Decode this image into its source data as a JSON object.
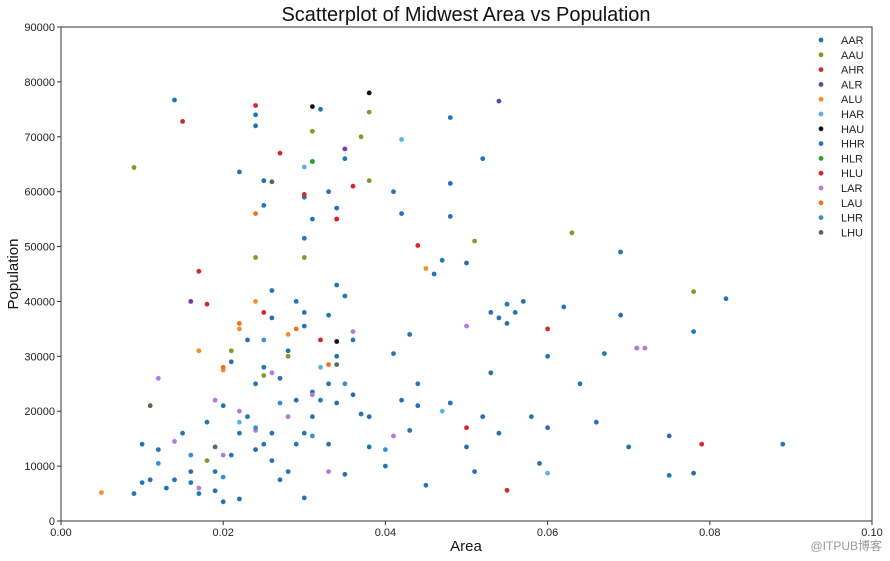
{
  "chart_data": {
    "type": "scatter",
    "title": "Scatterplot of Midwest Area vs Population",
    "xlabel": "Area",
    "ylabel": "Population",
    "xlim": [
      0.0,
      0.1
    ],
    "ylim": [
      0,
      90000
    ],
    "xticks": [
      "0.00",
      "0.02",
      "0.04",
      "0.06",
      "0.08",
      "0.10"
    ],
    "yticks": [
      "0",
      "10000",
      "20000",
      "30000",
      "40000",
      "50000",
      "60000",
      "70000",
      "80000",
      "90000"
    ],
    "grid": false,
    "legend_position": "top-right",
    "series": [
      {
        "name": "AAR",
        "color": "#1f77b4",
        "points": [
          [
            0.014,
            76700
          ],
          [
            0.024,
            74000
          ],
          [
            0.03,
            59000
          ],
          [
            0.032,
            75000
          ],
          [
            0.035,
            66000
          ],
          [
            0.031,
            55000
          ],
          [
            0.03,
            51500
          ],
          [
            0.025,
            57500
          ],
          [
            0.026,
            42000
          ],
          [
            0.029,
            40000
          ],
          [
            0.033,
            37500
          ],
          [
            0.034,
            43000
          ],
          [
            0.035,
            41000
          ],
          [
            0.03,
            35500
          ],
          [
            0.028,
            31000
          ],
          [
            0.025,
            28000
          ],
          [
            0.024,
            25000
          ],
          [
            0.02,
            21000
          ],
          [
            0.018,
            18000
          ],
          [
            0.015,
            16000
          ],
          [
            0.012,
            13000
          ],
          [
            0.01,
            14000
          ],
          [
            0.01,
            7000
          ],
          [
            0.013,
            6000
          ],
          [
            0.016,
            7000
          ],
          [
            0.017,
            5000
          ],
          [
            0.019,
            9000
          ],
          [
            0.021,
            12000
          ],
          [
            0.022,
            16000
          ],
          [
            0.023,
            19000
          ],
          [
            0.025,
            14000
          ],
          [
            0.026,
            11000
          ],
          [
            0.027,
            7500
          ],
          [
            0.028,
            9000
          ],
          [
            0.029,
            14000
          ],
          [
            0.03,
            16000
          ],
          [
            0.031,
            19000
          ],
          [
            0.032,
            22000
          ],
          [
            0.033,
            25000
          ],
          [
            0.034,
            30000
          ],
          [
            0.036,
            33000
          ],
          [
            0.037,
            19500
          ],
          [
            0.038,
            13500
          ],
          [
            0.04,
            10000
          ],
          [
            0.041,
            30500
          ],
          [
            0.043,
            34000
          ],
          [
            0.044,
            25000
          ],
          [
            0.046,
            45000
          ],
          [
            0.047,
            47500
          ],
          [
            0.048,
            73500
          ],
          [
            0.052,
            66000
          ],
          [
            0.055,
            39500
          ],
          [
            0.056,
            38000
          ],
          [
            0.058,
            19000
          ],
          [
            0.06,
            30000
          ],
          [
            0.062,
            39000
          ],
          [
            0.064,
            25000
          ],
          [
            0.067,
            30500
          ],
          [
            0.069,
            49000
          ],
          [
            0.071,
            31500
          ],
          [
            0.075,
            8300
          ],
          [
            0.078,
            34500
          ],
          [
            0.082,
            40500
          ],
          [
            0.089,
            14000
          ]
        ]
      },
      {
        "name": "AAU",
        "color": "#7f9b28",
        "points": [
          [
            0.009,
            64400
          ],
          [
            0.031,
            71000
          ],
          [
            0.037,
            70000
          ],
          [
            0.038,
            74500
          ],
          [
            0.038,
            62000
          ],
          [
            0.051,
            51000
          ],
          [
            0.063,
            52500
          ],
          [
            0.078,
            41800
          ],
          [
            0.03,
            48000
          ],
          [
            0.024,
            48000
          ],
          [
            0.021,
            31000
          ],
          [
            0.018,
            11000
          ],
          [
            0.025,
            26500
          ],
          [
            0.028,
            30000
          ]
        ]
      },
      {
        "name": "AHR",
        "color": "#d62728",
        "points": [
          [
            0.015,
            72800
          ],
          [
            0.024,
            75700
          ],
          [
            0.027,
            67000
          ],
          [
            0.03,
            59500
          ],
          [
            0.034,
            55000
          ],
          [
            0.036,
            61000
          ],
          [
            0.044,
            50200
          ],
          [
            0.017,
            45500
          ],
          [
            0.018,
            39500
          ],
          [
            0.025,
            38000
          ],
          [
            0.032,
            33000
          ],
          [
            0.05,
            17000
          ],
          [
            0.06,
            35000
          ],
          [
            0.079,
            14000
          ],
          [
            0.055,
            5600
          ]
        ]
      },
      {
        "name": "ALR",
        "color": "#6b3fa0",
        "points": [
          [
            0.054,
            76500
          ],
          [
            0.035,
            67800
          ],
          [
            0.016,
            40000
          ]
        ]
      },
      {
        "name": "ALU",
        "color": "#f28e2b",
        "points": [
          [
            0.005,
            5200
          ],
          [
            0.017,
            31000
          ],
          [
            0.022,
            35000
          ],
          [
            0.024,
            40000
          ],
          [
            0.028,
            34000
          ],
          [
            0.045,
            46000
          ],
          [
            0.02,
            27500
          ]
        ]
      },
      {
        "name": "HAR",
        "color": "#56b4e9",
        "points": [
          [
            0.03,
            64500
          ],
          [
            0.042,
            69500
          ],
          [
            0.022,
            18000
          ],
          [
            0.047,
            20000
          ],
          [
            0.06,
            8700
          ],
          [
            0.032,
            28000
          ]
        ]
      },
      {
        "name": "HAU",
        "color": "#111111",
        "points": [
          [
            0.038,
            78000
          ],
          [
            0.031,
            75500
          ],
          [
            0.034,
            32700
          ]
        ]
      },
      {
        "name": "HHR",
        "color": "#2a6fb6",
        "points": [
          [
            0.022,
            63600
          ],
          [
            0.024,
            72000
          ],
          [
            0.025,
            62000
          ],
          [
            0.031,
            65500
          ],
          [
            0.033,
            60000
          ],
          [
            0.034,
            57000
          ],
          [
            0.041,
            60000
          ],
          [
            0.042,
            56000
          ],
          [
            0.048,
            61500
          ],
          [
            0.048,
            55500
          ],
          [
            0.05,
            47000
          ],
          [
            0.053,
            38000
          ],
          [
            0.054,
            37000
          ],
          [
            0.069,
            37500
          ],
          [
            0.03,
            38000
          ],
          [
            0.026,
            37000
          ],
          [
            0.023,
            33000
          ],
          [
            0.021,
            29000
          ],
          [
            0.027,
            26000
          ],
          [
            0.031,
            23500
          ],
          [
            0.034,
            21500
          ],
          [
            0.038,
            19000
          ],
          [
            0.042,
            22000
          ],
          [
            0.044,
            21000
          ],
          [
            0.048,
            21500
          ],
          [
            0.05,
            13500
          ],
          [
            0.052,
            19000
          ],
          [
            0.054,
            16000
          ],
          [
            0.057,
            40000
          ],
          [
            0.06,
            17000
          ],
          [
            0.066,
            18000
          ],
          [
            0.07,
            13500
          ],
          [
            0.078,
            8700
          ],
          [
            0.075,
            15500
          ],
          [
            0.035,
            8500
          ],
          [
            0.03,
            4200
          ],
          [
            0.02,
            3500
          ],
          [
            0.009,
            5000
          ],
          [
            0.011,
            7500
          ],
          [
            0.014,
            7500
          ],
          [
            0.016,
            9000
          ],
          [
            0.019,
            5500
          ],
          [
            0.022,
            4000
          ],
          [
            0.024,
            13000
          ],
          [
            0.026,
            16000
          ],
          [
            0.029,
            22000
          ],
          [
            0.033,
            14000
          ],
          [
            0.036,
            23000
          ],
          [
            0.043,
            16500
          ],
          [
            0.045,
            6500
          ],
          [
            0.051,
            9000
          ],
          [
            0.053,
            27000
          ],
          [
            0.055,
            36000
          ],
          [
            0.059,
            10500
          ]
        ]
      },
      {
        "name": "HLR",
        "color": "#2ca02c",
        "points": [
          [
            0.031,
            65500
          ]
        ]
      },
      {
        "name": "HLU",
        "color": "#e02020",
        "points": [
          [
            0.034,
            55000
          ]
        ]
      },
      {
        "name": "LAR",
        "color": "#b07ae0",
        "points": [
          [
            0.012,
            26000
          ],
          [
            0.019,
            22000
          ],
          [
            0.022,
            20000
          ],
          [
            0.024,
            16500
          ],
          [
            0.026,
            27000
          ],
          [
            0.028,
            19000
          ],
          [
            0.031,
            23000
          ],
          [
            0.033,
            9000
          ],
          [
            0.036,
            34500
          ],
          [
            0.041,
            15500
          ],
          [
            0.05,
            35500
          ],
          [
            0.071,
            31500
          ],
          [
            0.072,
            31500
          ],
          [
            0.02,
            12000
          ],
          [
            0.017,
            6000
          ],
          [
            0.014,
            14500
          ]
        ]
      },
      {
        "name": "LAU",
        "color": "#f07020",
        "points": [
          [
            0.024,
            56000
          ],
          [
            0.02,
            28000
          ],
          [
            0.022,
            36000
          ],
          [
            0.029,
            35000
          ],
          [
            0.033,
            28500
          ]
        ]
      },
      {
        "name": "LHR",
        "color": "#3b8ed0",
        "points": [
          [
            0.024,
            17000
          ],
          [
            0.027,
            21500
          ],
          [
            0.031,
            15500
          ],
          [
            0.035,
            25000
          ],
          [
            0.04,
            13000
          ],
          [
            0.02,
            8000
          ],
          [
            0.016,
            12000
          ],
          [
            0.012,
            10500
          ],
          [
            0.025,
            33000
          ]
        ]
      },
      {
        "name": "LHU",
        "color": "#556b55",
        "points": [
          [
            0.011,
            21000
          ],
          [
            0.026,
            61800
          ],
          [
            0.034,
            28500
          ],
          [
            0.019,
            13500
          ]
        ]
      }
    ]
  },
  "watermark": "@ITPUB博客"
}
